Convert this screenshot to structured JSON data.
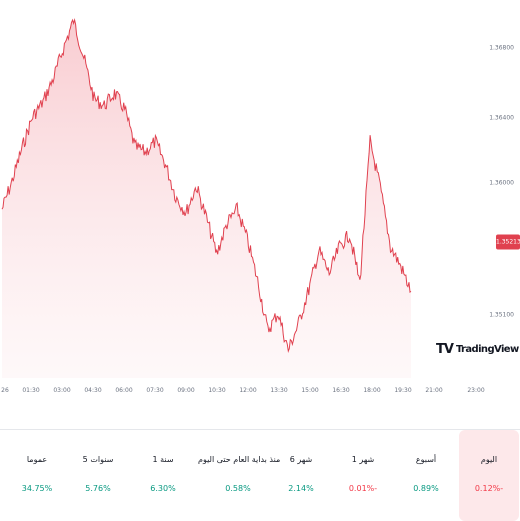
{
  "chart_data": {
    "type": "area",
    "series": [
      {
        "x": [
          "00:00",
          "00:30",
          "01:00",
          "01:30",
          "02:00",
          "02:30",
          "03:00",
          "03:30",
          "04:00",
          "04:30",
          "05:00",
          "05:30",
          "06:00",
          "06:30",
          "07:00",
          "07:30",
          "08:00",
          "08:30",
          "09:00",
          "09:30",
          "10:00",
          "10:30",
          "11:00",
          "11:30",
          "12:00",
          "12:30",
          "13:00",
          "13:30",
          "14:00",
          "14:30",
          "15:00",
          "15:30",
          "16:00",
          "16:30",
          "17:00",
          "17:30",
          "18:00",
          "18:30",
          "19:00",
          "19:30",
          "20:00"
        ],
        "values": [
          1.3566,
          1.3582,
          1.3601,
          1.3618,
          1.3626,
          1.3639,
          1.3656,
          1.3672,
          1.3651,
          1.3628,
          1.3624,
          1.3631,
          1.3622,
          1.3601,
          1.3598,
          1.3604,
          1.3591,
          1.3573,
          1.3564,
          1.3579,
          1.3561,
          1.3541,
          1.3558,
          1.3566,
          1.3549,
          1.3526,
          1.3498,
          1.3508,
          1.3487,
          1.3502,
          1.3521,
          1.3543,
          1.353,
          1.3545,
          1.3552,
          1.3525,
          1.3604,
          1.3578,
          1.3545,
          1.3534,
          1.352
        ]
      }
    ],
    "ylim": [
      1.3476,
      1.3672
    ],
    "yticks": [
      "1.36800",
      "1.36400",
      "1.36000",
      "1.35600",
      "1.35100"
    ],
    "xticks": [
      "26",
      "01:30",
      "03:00",
      "04:30",
      "06:00",
      "07:30",
      "09:00",
      "10:30",
      "12:00",
      "13:30",
      "15:00",
      "16:30",
      "18:00",
      "19:30",
      "21:00",
      "23:00"
    ],
    "last_price": "1.35213",
    "line_color": "#e0414f",
    "grid": false
  },
  "logo": {
    "mark": "TV",
    "name": "TradingView"
  },
  "performance": [
    {
      "label": "اليوم",
      "value": "0.12%-",
      "trend": "negative",
      "active": true
    },
    {
      "label": "أسبوع",
      "value": "0.89%",
      "trend": "positive",
      "active": false
    },
    {
      "label": "1 شهر",
      "value": "0.01%-",
      "trend": "negative",
      "active": false
    },
    {
      "label": "6 شهر",
      "value": "2.14%",
      "trend": "positive",
      "active": false
    },
    {
      "label": "منذ بداية العام حتى اليوم",
      "value": "0.58%",
      "trend": "positive",
      "active": false
    },
    {
      "label": "1 سنة",
      "value": "6.30%",
      "trend": "positive",
      "active": false
    },
    {
      "label": "5 سنوات",
      "value": "5.76%",
      "trend": "positive",
      "active": false
    },
    {
      "label": "عموما",
      "value": "34.75%",
      "trend": "positive",
      "active": false
    }
  ]
}
